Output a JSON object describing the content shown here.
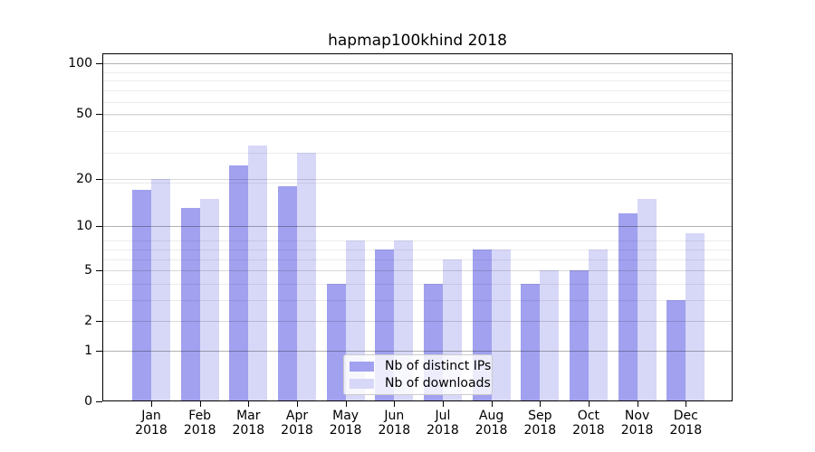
{
  "title": "hapmap100khind 2018",
  "legend": {
    "items": [
      {
        "label": "Nb of distinct IPs",
        "color": "#a1a1f0"
      },
      {
        "label": "Nb of downloads",
        "color": "#d7d7f8"
      }
    ]
  },
  "y_axis": {
    "tick_labels": [
      "0",
      "1",
      "2",
      "5",
      "10",
      "20",
      "50",
      "100"
    ]
  },
  "x_axis": {
    "months": [
      "Jan",
      "Feb",
      "Mar",
      "Apr",
      "May",
      "Jun",
      "Jul",
      "Aug",
      "Sep",
      "Oct",
      "Nov",
      "Dec"
    ],
    "year": "2018"
  },
  "chart_data": {
    "type": "bar",
    "title": "hapmap100khind 2018",
    "categories": [
      "Jan 2018",
      "Feb 2018",
      "Mar 2018",
      "Apr 2018",
      "May 2018",
      "Jun 2018",
      "Jul 2018",
      "Aug 2018",
      "Sep 2018",
      "Oct 2018",
      "Nov 2018",
      "Dec 2018"
    ],
    "series": [
      {
        "name": "Nb of distinct IPs",
        "color": "#a1a1f0",
        "values": [
          17,
          13,
          24,
          18,
          4,
          7,
          4,
          7,
          4,
          5,
          12,
          3
        ]
      },
      {
        "name": "Nb of downloads",
        "color": "#d7d7f8",
        "values": [
          20,
          15,
          32,
          29,
          8,
          8,
          6,
          7,
          5,
          7,
          15,
          9
        ]
      }
    ],
    "yscale": "log10(value+1)",
    "y_ticks": [
      0,
      1,
      2,
      5,
      10,
      20,
      50,
      100
    ],
    "ylim": [
      0,
      115
    ],
    "xlabel": "",
    "ylabel": "",
    "grid": "both (major and minor horizontal gridlines)",
    "legend_position": "lower center"
  },
  "colors": {
    "background": "#ffffff",
    "bar_distinct_ips": "#a1a1f0",
    "bar_downloads": "#d7d7f8",
    "axis": "#000000",
    "grid_decade": "#b3b3b3",
    "grid_major": "#d9d9d9",
    "grid_minor": "#ebebeb",
    "legend_border": "#cccccc"
  }
}
